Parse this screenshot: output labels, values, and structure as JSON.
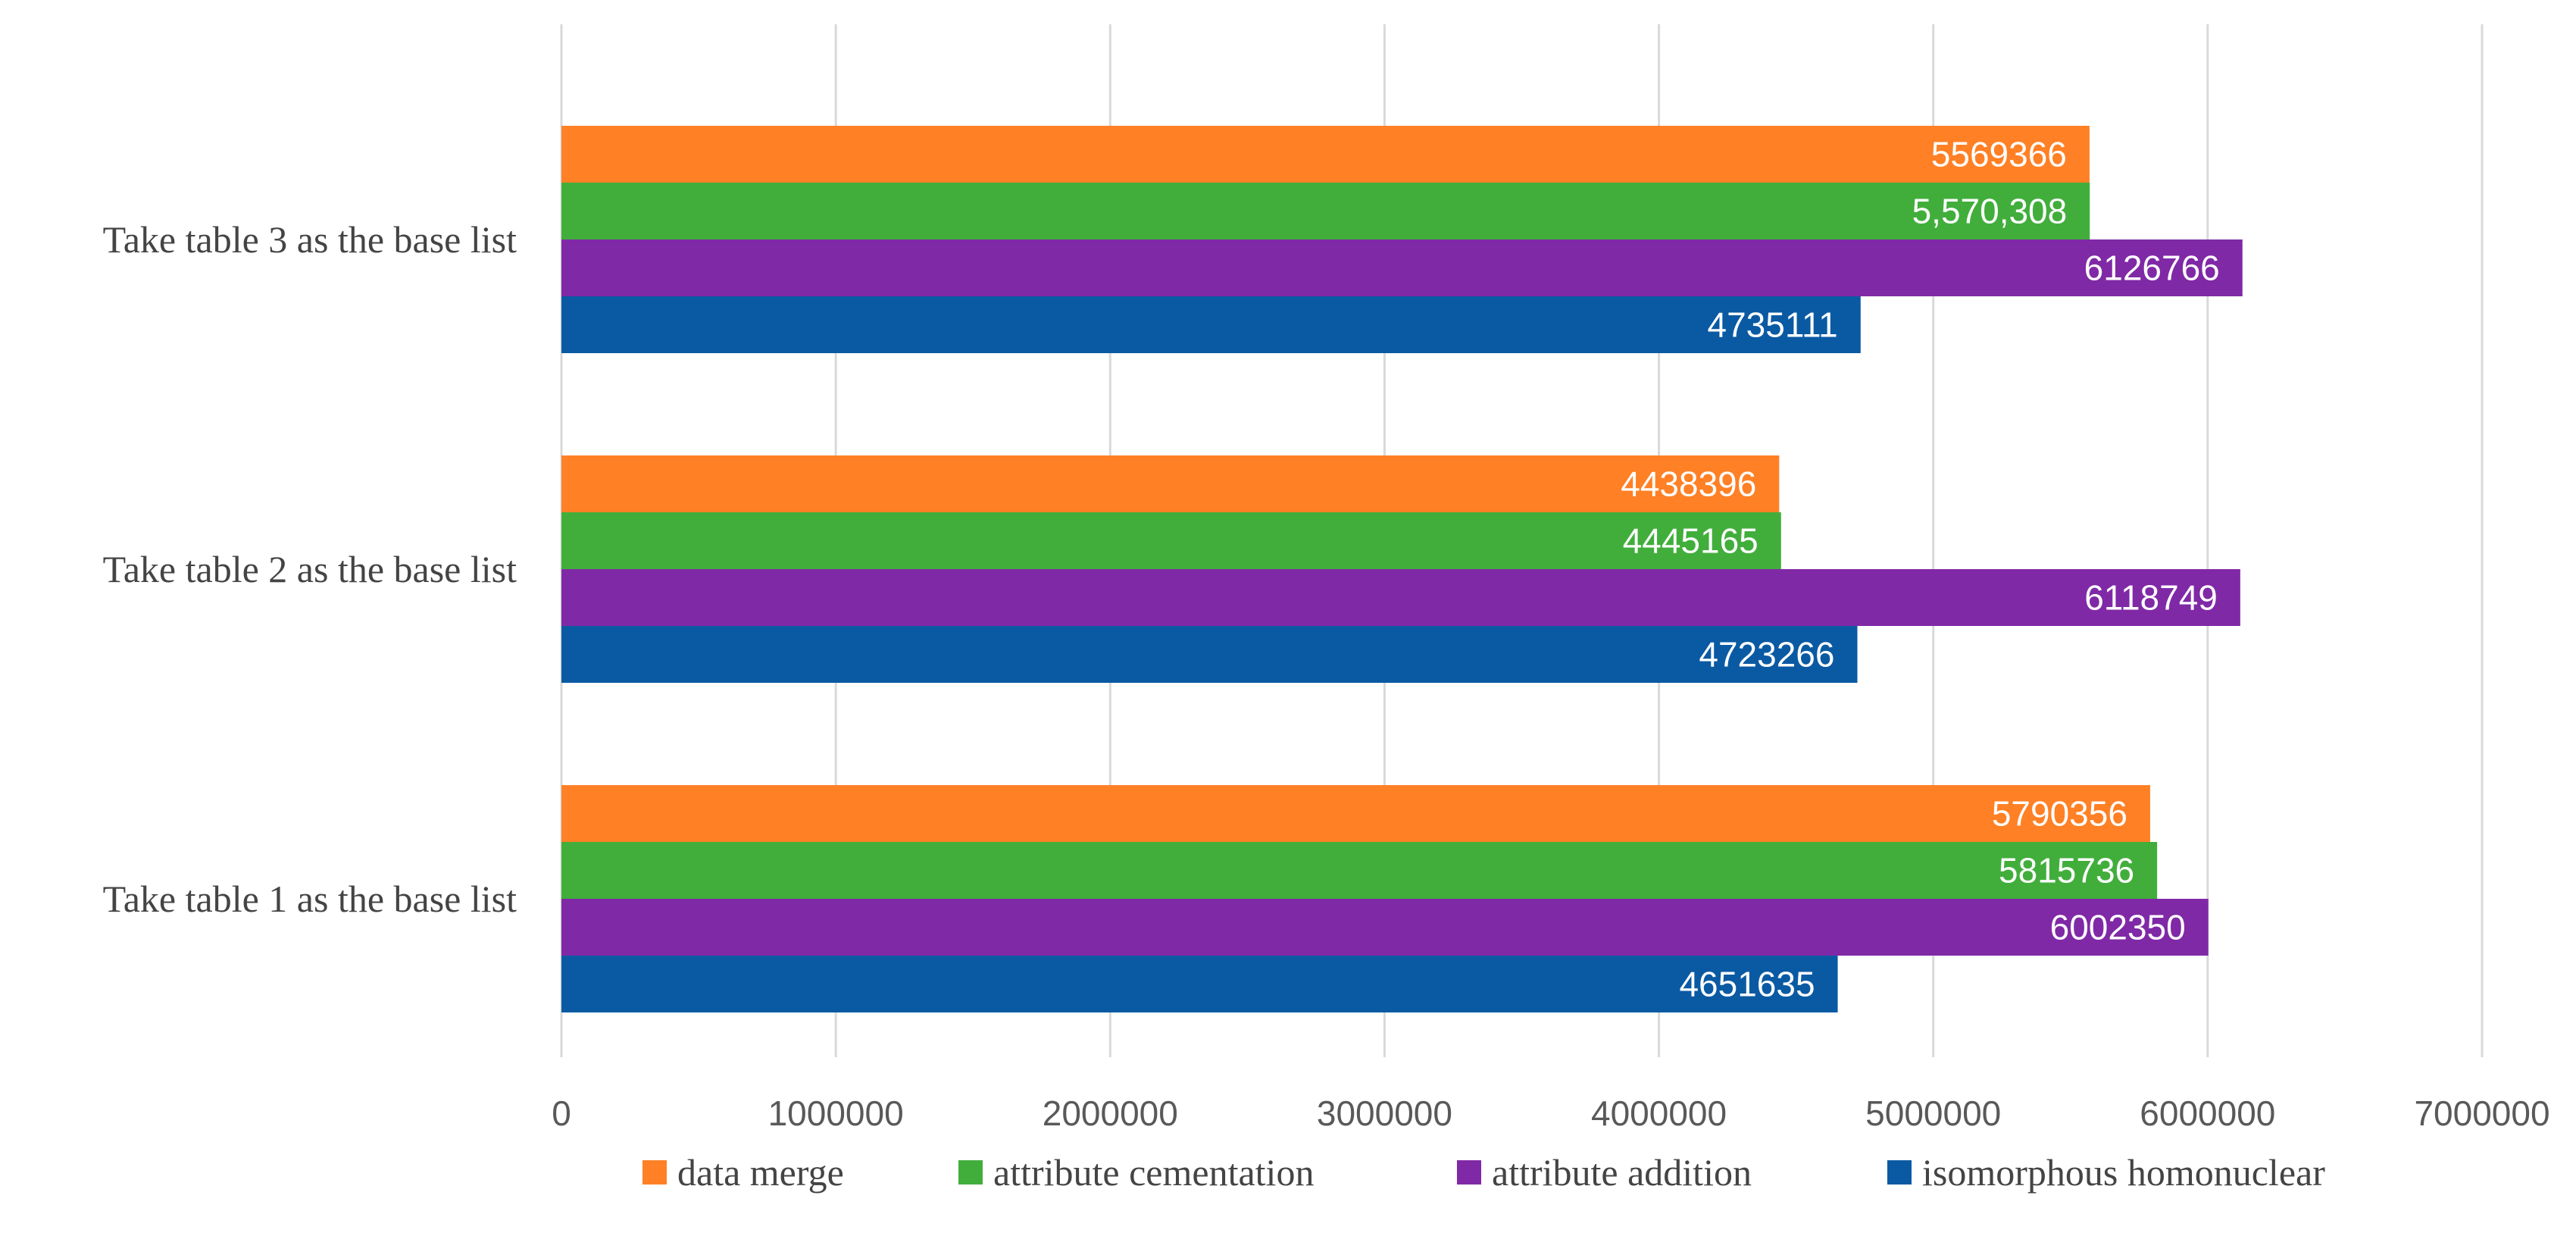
{
  "chart_data": {
    "type": "bar",
    "orientation": "horizontal",
    "categories": [
      "Take table 1 as the base list",
      "Take table 2 as the base list",
      "Take table 3 as the base list"
    ],
    "series": [
      {
        "name": "data merge",
        "color": "#FF8025",
        "values": [
          5790356,
          4438396,
          5569366
        ],
        "labels": [
          "5790356",
          "4438396",
          "5569366"
        ]
      },
      {
        "name": "attribute cementation",
        "color": "#41AE3C",
        "values": [
          5815736,
          4445165,
          5570308
        ],
        "labels": [
          "5815736",
          "4445165",
          "5,570,308"
        ]
      },
      {
        "name": "attribute addition",
        "color": "#8029A6",
        "values": [
          6002350,
          6118749,
          6126766
        ],
        "labels": [
          "6002350",
          "6118749",
          "6126766"
        ]
      },
      {
        "name": "isomorphous homonuclear",
        "color": "#0A5AA3",
        "values": [
          4651635,
          4723266,
          4735111
        ],
        "labels": [
          "4651635",
          "4723266",
          "4735111"
        ]
      }
    ],
    "xlim": [
      0,
      7000000
    ],
    "xticks": [
      "0",
      "1000000",
      "2000000",
      "3000000",
      "4000000",
      "5000000",
      "6000000",
      "7000000"
    ],
    "title": "",
    "xlabel": "",
    "ylabel": "",
    "grid": "vertical",
    "legend": "bottom"
  }
}
